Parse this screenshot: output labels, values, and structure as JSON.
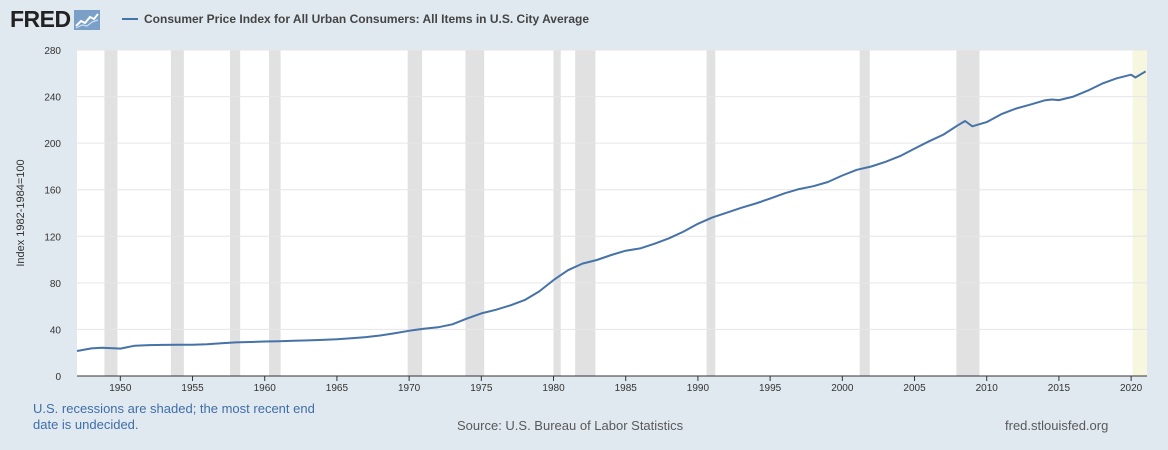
{
  "header": {
    "logo_text": "FRED",
    "series_title": "Consumer Price Index for All Urban Consumers: All Items in U.S. City Average"
  },
  "footer": {
    "recession_note": "U.S. recessions are shaded; the most recent end date is undecided.",
    "source": "Source: U.S. Bureau of Labor Statistics",
    "site": "fred.stlouisfed.org"
  },
  "colors": {
    "line": "#4572a7",
    "recession": "#e1e1e1",
    "recession_undecided": "#f7f6df",
    "background": "#e1e9f0",
    "plot": "#ffffff",
    "grid": "#e6e6e6"
  },
  "chart_data": {
    "type": "line",
    "title": "",
    "xlabel": "",
    "ylabel": "Index 1982-1984=100",
    "ylim": [
      0,
      280
    ],
    "xlim": [
      1947.0,
      2021.1
    ],
    "y_ticks": [
      0,
      40,
      80,
      120,
      160,
      200,
      240,
      280
    ],
    "x_ticks": [
      1950,
      1955,
      1960,
      1965,
      1970,
      1975,
      1980,
      1985,
      1990,
      1995,
      2000,
      2005,
      2010,
      2015,
      2020
    ],
    "grid": true,
    "legend_position": "top-left",
    "recessions": [
      [
        1948.9,
        1949.8
      ],
      [
        1953.5,
        1954.4
      ],
      [
        1957.6,
        1958.3
      ],
      [
        1960.3,
        1961.1
      ],
      [
        1969.9,
        1970.9
      ],
      [
        1973.9,
        1975.2
      ],
      [
        1980.0,
        1980.5
      ],
      [
        1981.5,
        1982.9
      ],
      [
        1990.6,
        1991.2
      ],
      [
        2001.2,
        2001.9
      ],
      [
        2007.9,
        2009.5
      ]
    ],
    "recession_undecided": [
      2020.1,
      2021.1
    ],
    "series": [
      {
        "name": "Consumer Price Index for All Urban Consumers: All Items in U.S. City Average",
        "x": [
          1947.0,
          1948.0,
          1948.7,
          1949.5,
          1950.0,
          1951.0,
          1952.0,
          1953.0,
          1954.0,
          1955.0,
          1956.0,
          1957.0,
          1958.0,
          1959.0,
          1960.0,
          1961.0,
          1962.0,
          1963.0,
          1964.0,
          1965.0,
          1966.0,
          1967.0,
          1968.0,
          1969.0,
          1970.0,
          1971.0,
          1972.0,
          1973.0,
          1974.0,
          1975.0,
          1976.0,
          1977.0,
          1978.0,
          1979.0,
          1980.0,
          1981.0,
          1982.0,
          1983.0,
          1984.0,
          1985.0,
          1986.0,
          1987.0,
          1988.0,
          1989.0,
          1990.0,
          1991.0,
          1992.0,
          1993.0,
          1994.0,
          1995.0,
          1996.0,
          1997.0,
          1998.0,
          1999.0,
          2000.0,
          2001.0,
          2002.0,
          2003.0,
          2004.0,
          2005.0,
          2006.0,
          2007.0,
          2008.0,
          2008.5,
          2009.0,
          2010.0,
          2011.0,
          2012.0,
          2013.0,
          2014.0,
          2014.5,
          2015.0,
          2016.0,
          2017.0,
          2018.0,
          2019.0,
          2020.0,
          2020.3,
          2020.5,
          2021.0
        ],
        "values": [
          21.5,
          23.7,
          24.3,
          23.8,
          23.5,
          26.0,
          26.5,
          26.7,
          26.9,
          26.8,
          27.2,
          28.1,
          28.9,
          29.2,
          29.6,
          29.9,
          30.3,
          30.6,
          31.0,
          31.5,
          32.5,
          33.4,
          34.8,
          36.7,
          38.8,
          40.5,
          41.8,
          44.4,
          49.3,
          53.8,
          56.9,
          60.6,
          65.2,
          72.6,
          82.4,
          90.9,
          96.5,
          99.6,
          103.9,
          107.6,
          109.6,
          113.6,
          118.3,
          124.0,
          130.7,
          136.2,
          140.3,
          144.5,
          148.2,
          152.4,
          156.9,
          160.5,
          163.0,
          166.6,
          172.2,
          177.1,
          179.9,
          184.0,
          188.9,
          195.3,
          201.6,
          207.3,
          215.3,
          219.0,
          214.5,
          218.1,
          224.9,
          229.6,
          233.0,
          236.7,
          237.5,
          237.0,
          240.0,
          245.1,
          251.1,
          255.7,
          258.8,
          256.4,
          257.8,
          261.6
        ]
      }
    ]
  }
}
